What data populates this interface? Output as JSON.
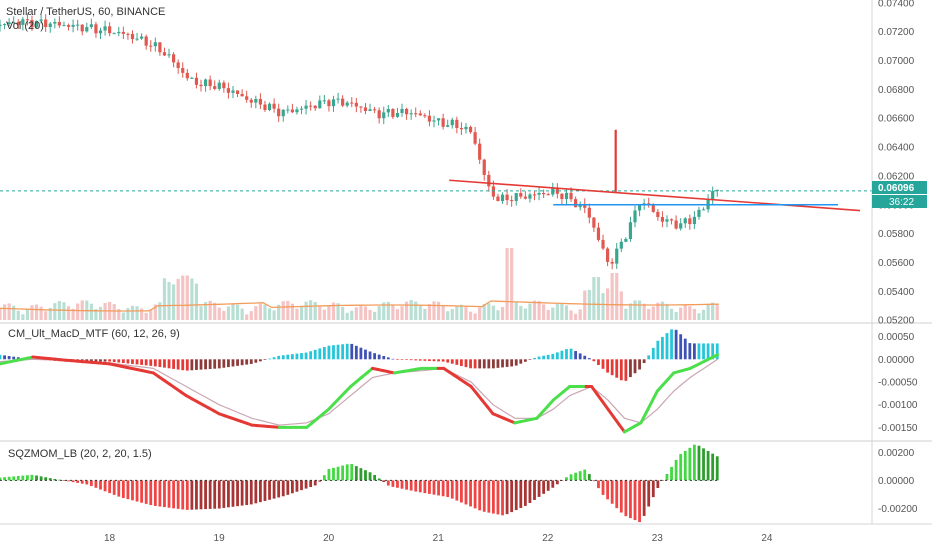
{
  "header": {
    "symbol_line": "Stellar / TetherUS, 60, BINANCE",
    "volume_label": "Vol (20)"
  },
  "indicators": {
    "macd_label": "CM_Ult_MacD_MTF (60, 12, 26, 9)",
    "sqz_label": "SQZMOM_LB (20, 2, 20, 1.5)"
  },
  "price_tag": {
    "value": "0.06096",
    "countdown": "36:22"
  },
  "colors": {
    "up": "#3aa68f",
    "down": "#e0584f",
    "trend_line": "#e53935",
    "support_line": "#2196f3",
    "price_dash": "#26a69a",
    "vol_up": "#b9dfd4",
    "vol_down": "#f4c3c3",
    "vol_ma": "#f39c5a",
    "macd_up_strong": "#26c6da",
    "macd_up_weak": "#3f51b5",
    "macd_down_strong": "#e53935",
    "macd_down_weak": "#8d3a3a",
    "macd_line_up": "#4cdf4c",
    "macd_line_down": "#e53935",
    "signal": "#c9a6b3",
    "sqz_pos": "#43d843",
    "sqz_neg": "#f04545"
  },
  "chart_data": [
    {
      "type": "candlestick",
      "title": "Stellar / TetherUS, 60, BINANCE",
      "x_ticks": [
        "18",
        "19",
        "20",
        "21",
        "22",
        "23",
        "24"
      ],
      "y_ticks": [
        "0.07400",
        "0.07200",
        "0.07000",
        "0.06800",
        "0.06600",
        "0.06400",
        "0.06200",
        "0.06000",
        "0.05800",
        "0.05600",
        "0.05400",
        "0.05200"
      ],
      "ylim": [
        0.0518,
        0.0742
      ],
      "xlim": [
        17.0,
        24.85
      ],
      "last_price": 0.06096,
      "path": [
        [
          17.0,
          0.0724
        ],
        [
          17.2,
          0.0727
        ],
        [
          17.45,
          0.0726
        ],
        [
          17.7,
          0.0724
        ],
        [
          18.0,
          0.0721
        ],
        [
          18.2,
          0.0718
        ],
        [
          18.4,
          0.0712
        ],
        [
          18.55,
          0.0705
        ],
        [
          18.65,
          0.0697
        ],
        [
          18.75,
          0.0688
        ],
        [
          18.85,
          0.0684
        ],
        [
          19.0,
          0.0683
        ],
        [
          19.15,
          0.0679
        ],
        [
          19.3,
          0.0673
        ],
        [
          19.45,
          0.0669
        ],
        [
          19.6,
          0.0664
        ],
        [
          19.75,
          0.0666
        ],
        [
          19.9,
          0.0669
        ],
        [
          20.05,
          0.0672
        ],
        [
          20.2,
          0.0671
        ],
        [
          20.35,
          0.0667
        ],
        [
          20.5,
          0.0663
        ],
        [
          20.65,
          0.0664
        ],
        [
          20.8,
          0.0664
        ],
        [
          20.95,
          0.066
        ],
        [
          21.05,
          0.0657
        ],
        [
          21.15,
          0.0656
        ],
        [
          21.25,
          0.0654
        ],
        [
          21.35,
          0.065
        ],
        [
          21.4,
          0.0637
        ],
        [
          21.5,
          0.0611
        ],
        [
          21.6,
          0.0603
        ],
        [
          21.7,
          0.0605
        ],
        [
          21.85,
          0.0606
        ],
        [
          22.0,
          0.0608
        ],
        [
          22.1,
          0.0609
        ],
        [
          22.2,
          0.0606
        ],
        [
          22.3,
          0.0601
        ],
        [
          22.4,
          0.0596
        ],
        [
          22.5,
          0.0577
        ],
        [
          22.6,
          0.0558
        ],
        [
          22.7,
          0.0571
        ],
        [
          22.8,
          0.0587
        ],
        [
          22.88,
          0.0602
        ],
        [
          22.95,
          0.06
        ],
        [
          23.05,
          0.0591
        ],
        [
          23.15,
          0.0588
        ],
        [
          23.25,
          0.0586
        ],
        [
          23.35,
          0.059
        ],
        [
          23.45,
          0.0596
        ],
        [
          23.55,
          0.061
        ]
      ],
      "volume": [
        {
          "x": 21.65,
          "v": 0.0018
        },
        {
          "x": 22.45,
          "v": 0.0007
        },
        {
          "x": 22.6,
          "v": 0.0008
        }
      ],
      "annotations": {
        "trend_line": {
          "from": [
            21.1,
            0.0617
          ],
          "to": [
            24.85,
            0.0596
          ]
        },
        "support_line": {
          "from": [
            22.05,
            0.06
          ],
          "to": [
            24.65,
            0.06
          ]
        },
        "spike_line": {
          "x": 22.62,
          "from": 0.0609,
          "to": 0.0652
        }
      }
    },
    {
      "type": "histogram",
      "title": "CM_Ult_MacD_MTF (60, 12, 26, 9)",
      "y_ticks": [
        "0.00050",
        "0.00000",
        "-0.00050",
        "-0.00100",
        "-0.00150"
      ],
      "ylim": [
        -0.0018,
        0.0008
      ],
      "x": [
        17.0,
        17.3,
        17.6,
        18.0,
        18.4,
        18.7,
        19.0,
        19.3,
        19.55,
        19.8,
        20.0,
        20.2,
        20.4,
        20.6,
        20.85,
        21.05,
        21.3,
        21.5,
        21.7,
        21.9,
        22.05,
        22.2,
        22.4,
        22.55,
        22.7,
        22.85,
        23.0,
        23.15,
        23.3,
        23.55
      ],
      "macd": [
        -0.0001,
        5e-05,
        -2e-05,
        -0.0001,
        -0.0003,
        -0.0008,
        -0.0012,
        -0.00145,
        -0.0015,
        -0.0015,
        -0.0011,
        -0.0006,
        -0.0002,
        -0.0003,
        -0.0002,
        -0.0002,
        -0.0006,
        -0.0012,
        -0.0014,
        -0.0013,
        -0.0009,
        -0.0006,
        -0.0006,
        -0.0011,
        -0.0016,
        -0.0014,
        -0.0007,
        -0.0003,
        -0.0002,
        0.0001
      ],
      "signal": [
        -5e-05,
        0.0,
        -2e-05,
        -8e-05,
        -0.0002,
        -0.0006,
        -0.001,
        -0.0013,
        -0.00145,
        -0.0014,
        -0.0012,
        -0.0008,
        -0.0004,
        -0.0003,
        -0.00025,
        -0.0002,
        -0.0005,
        -0.001,
        -0.0013,
        -0.0013,
        -0.0011,
        -0.0008,
        -0.0006,
        -0.0009,
        -0.0013,
        -0.0014,
        -0.0011,
        -0.0007,
        -0.0004,
        0.0
      ],
      "hist": [
        0.0001,
        0.0,
        -5e-05,
        -5e-05,
        -0.00015,
        -0.00025,
        -0.0002,
        -0.0001,
        8e-05,
        0.00015,
        0.0003,
        0.00035,
        0.00015,
        0.0,
        -3e-05,
        -5e-05,
        -0.0002,
        -0.0002,
        -0.00015,
        5e-05,
        0.00012,
        0.00025,
        0.0,
        -0.0003,
        -0.0005,
        -0.0002,
        0.0004,
        0.0007,
        0.00035,
        0.00035
      ]
    },
    {
      "type": "histogram",
      "title": "SQZMOM_LB (20, 2, 20, 1.5)",
      "y_ticks": [
        "0.00200",
        "0.00000",
        "-0.00200"
      ],
      "ylim": [
        -0.0031,
        0.0028
      ],
      "x": [
        17.0,
        17.3,
        17.5,
        17.8,
        18.1,
        18.4,
        18.7,
        19.0,
        19.3,
        19.6,
        19.9,
        20.0,
        20.2,
        20.4,
        20.55,
        20.8,
        21.1,
        21.4,
        21.6,
        21.8,
        22.05,
        22.2,
        22.35,
        22.5,
        22.7,
        22.85,
        23.0,
        23.2,
        23.35,
        23.55
      ],
      "values": [
        0.0002,
        0.0004,
        0.0001,
        -0.0003,
        -0.0012,
        -0.0018,
        -0.0021,
        -0.002,
        -0.0017,
        -0.0011,
        -0.0003,
        0.0008,
        0.0012,
        0.0005,
        -0.0004,
        -0.0008,
        -0.0012,
        -0.0022,
        -0.0025,
        -0.0018,
        -0.0005,
        0.0004,
        0.0008,
        -0.001,
        -0.0025,
        -0.003,
        -0.0006,
        0.0018,
        0.0026,
        0.0017
      ]
    }
  ]
}
